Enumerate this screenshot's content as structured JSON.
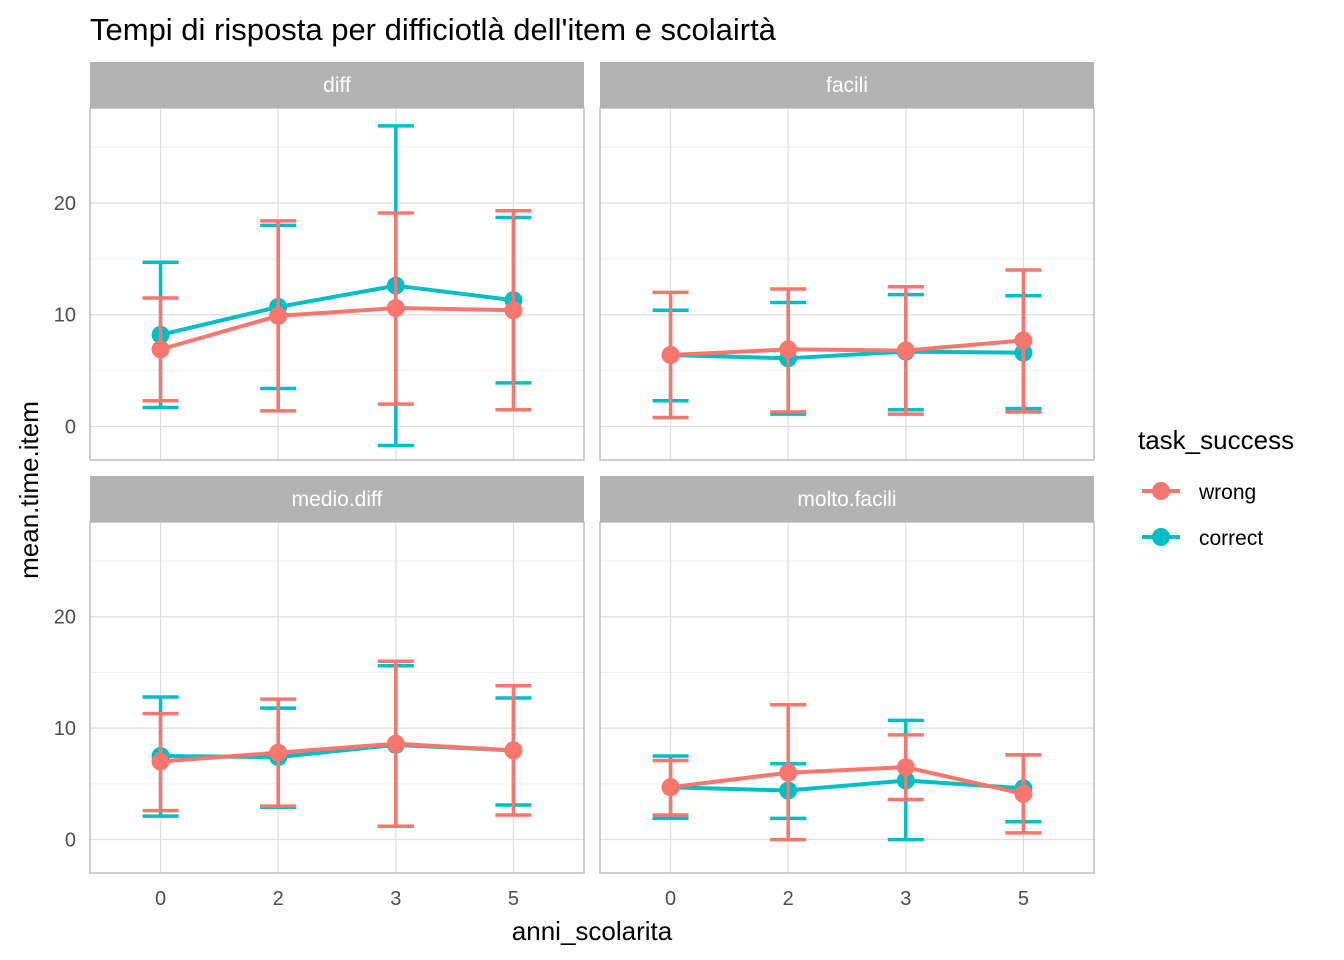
{
  "chart_data": {
    "type": "line",
    "title": "Tempi di risposta per difficiotlà dell'item e scolairtà",
    "xlabel": "anni_scolarita",
    "ylabel": "mean.time.item",
    "x_categories": [
      "0",
      "2",
      "3",
      "5"
    ],
    "y_ticks": [
      0,
      10,
      20
    ],
    "ylim": [
      -3,
      28.5
    ],
    "grid": true,
    "legend": {
      "title": "task_success",
      "position": "right",
      "entries": [
        {
          "label": "wrong",
          "color": "#F8766D"
        },
        {
          "label": "correct",
          "color": "#00BFC4"
        }
      ]
    },
    "facets": [
      {
        "label": "diff",
        "series": [
          {
            "name": "correct",
            "color": "#00BFC4",
            "mean": [
              8.2,
              10.7,
              12.6,
              11.3
            ],
            "lower": [
              1.7,
              3.4,
              -1.7,
              3.9
            ],
            "upper": [
              14.7,
              18.0,
              26.9,
              18.7
            ]
          },
          {
            "name": "wrong",
            "color": "#F8766D",
            "mean": [
              6.9,
              9.9,
              10.6,
              10.4
            ],
            "lower": [
              2.3,
              1.4,
              2.0,
              1.5
            ],
            "upper": [
              11.5,
              18.4,
              19.1,
              19.3
            ]
          }
        ]
      },
      {
        "label": "facili",
        "series": [
          {
            "name": "correct",
            "color": "#00BFC4",
            "mean": [
              6.4,
              6.1,
              6.7,
              6.6
            ],
            "lower": [
              2.3,
              1.1,
              1.5,
              1.6
            ],
            "upper": [
              10.4,
              11.1,
              11.8,
              11.7
            ]
          },
          {
            "name": "wrong",
            "color": "#F8766D",
            "mean": [
              6.4,
              6.9,
              6.8,
              7.7
            ],
            "lower": [
              0.8,
              1.3,
              1.1,
              1.3
            ],
            "upper": [
              12.0,
              12.3,
              12.5,
              14.0
            ]
          }
        ]
      },
      {
        "label": "medio.diff",
        "series": [
          {
            "name": "correct",
            "color": "#00BFC4",
            "mean": [
              7.5,
              7.4,
              8.5,
              8.0
            ],
            "lower": [
              2.1,
              2.9,
              1.2,
              3.1
            ],
            "upper": [
              12.8,
              11.8,
              15.6,
              12.7
            ]
          },
          {
            "name": "wrong",
            "color": "#F8766D",
            "mean": [
              7.0,
              7.8,
              8.6,
              8.0
            ],
            "lower": [
              2.6,
              3.0,
              1.2,
              2.2
            ],
            "upper": [
              11.3,
              12.6,
              16.0,
              13.8
            ]
          }
        ]
      },
      {
        "label": "molto.facili",
        "series": [
          {
            "name": "correct",
            "color": "#00BFC4",
            "mean": [
              4.7,
              4.4,
              5.3,
              4.6
            ],
            "lower": [
              1.9,
              1.9,
              0.0,
              1.6
            ],
            "upper": [
              7.5,
              6.8,
              10.7,
              7.6
            ]
          },
          {
            "name": "wrong",
            "color": "#F8766D",
            "mean": [
              4.7,
              6.0,
              6.5,
              4.1
            ],
            "lower": [
              2.2,
              0.0,
              3.6,
              0.6
            ],
            "upper": [
              7.1,
              12.1,
              9.4,
              7.6
            ]
          }
        ]
      }
    ]
  }
}
